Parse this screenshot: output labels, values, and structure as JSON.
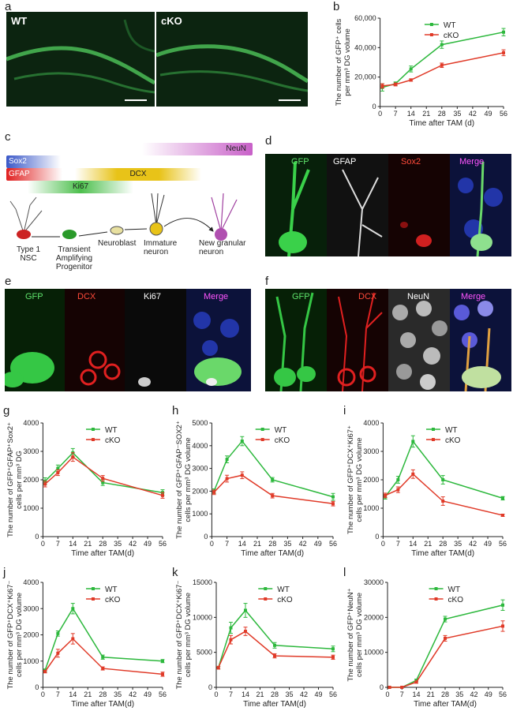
{
  "panel_letters": [
    "a",
    "b",
    "c",
    "d",
    "e",
    "f",
    "g",
    "h",
    "i",
    "j",
    "k",
    "l"
  ],
  "panel_a": {
    "labels": [
      "WT",
      "cKO"
    ]
  },
  "panel_c": {
    "markers": [
      "Sox2",
      "GFAP",
      "Ki67",
      "DCX",
      "NeuN"
    ],
    "stages": [
      "Type 1 NSC",
      "Transient Amplifying Progenitor",
      "Neuroblast",
      "Immature neuron",
      "New granular neuron"
    ]
  },
  "panel_d": {
    "labels": [
      "GFP",
      "GFAP",
      "Sox2",
      "Merge"
    ]
  },
  "panel_e": {
    "labels": [
      "GFP",
      "DCX",
      "Ki67",
      "Merge"
    ]
  },
  "panel_f": {
    "labels": [
      "GFP",
      "DCX",
      "NeuN",
      "Merge"
    ]
  },
  "colors": {
    "wt": "#2db83d",
    "cko": "#e03a28"
  },
  "chart_data": [
    {
      "id": "b",
      "type": "line",
      "ylabel": [
        "The number of GFP⁺ cells",
        "per mm³ DG volume"
      ],
      "xlabel": "Time after TAM (d)",
      "x": [
        0,
        7,
        14,
        21,
        28,
        35,
        42,
        49,
        56
      ],
      "xticks": [
        "0",
        "7",
        "14",
        "21",
        "28",
        "35",
        "42",
        "49",
        "56"
      ],
      "ylim": [
        0,
        60000
      ],
      "yticks": [
        "0",
        "20,000",
        "40,000",
        "60,000"
      ],
      "ytick_values": [
        0,
        20000,
        40000,
        60000
      ],
      "series": [
        {
          "name": "WT",
          "x": [
            1,
            7,
            14,
            28,
            56
          ],
          "values": [
            13000,
            15500,
            25500,
            42000,
            50500
          ],
          "err": [
            2500,
            1200,
            2000,
            2500,
            2500
          ]
        },
        {
          "name": "cKO",
          "x": [
            1,
            7,
            14,
            28,
            56
          ],
          "values": [
            14000,
            15000,
            18000,
            28000,
            36500
          ],
          "err": [
            1500,
            1000,
            800,
            1500,
            2000
          ]
        }
      ]
    },
    {
      "id": "g",
      "type": "line",
      "ylabel": [
        "The number of GFP⁺GFAP⁺Sox2⁺",
        "cells per mm³ DG"
      ],
      "xlabel": "Time after TAM(d)",
      "xticks": [
        "0",
        "7",
        "14",
        "21",
        "28",
        "35",
        "42",
        "49",
        "56"
      ],
      "ylim": [
        0,
        4000
      ],
      "yticks": [
        "0",
        "1000",
        "2000",
        "3000",
        "4000"
      ],
      "ytick_values": [
        0,
        1000,
        2000,
        3000,
        4000
      ],
      "series": [
        {
          "name": "WT",
          "x": [
            1,
            7,
            14,
            28,
            56
          ],
          "values": [
            1950,
            2400,
            2950,
            1900,
            1550
          ],
          "err": [
            120,
            120,
            150,
            100,
            100
          ]
        },
        {
          "name": "cKO",
          "x": [
            1,
            7,
            14,
            28,
            56
          ],
          "values": [
            1850,
            2250,
            2800,
            2050,
            1450
          ],
          "err": [
            100,
            100,
            150,
            100,
            100
          ]
        }
      ]
    },
    {
      "id": "h",
      "type": "line",
      "ylabel": [
        "The number of GFP⁺GFAP⁻SOX2⁺",
        "cells per mm³ DG volume"
      ],
      "xlabel": "Time after TAM(d)",
      "xticks": [
        "0",
        "7",
        "14",
        "21",
        "28",
        "35",
        "42",
        "49",
        "56"
      ],
      "ylim": [
        0,
        5000
      ],
      "yticks": [
        "0",
        "1000",
        "2000",
        "3000",
        "4000",
        "5000"
      ],
      "ytick_values": [
        0,
        1000,
        2000,
        3000,
        4000,
        5000
      ],
      "series": [
        {
          "name": "WT",
          "x": [
            1,
            7,
            14,
            28,
            56
          ],
          "values": [
            2000,
            3400,
            4200,
            2500,
            1750
          ],
          "err": [
            100,
            150,
            200,
            100,
            150
          ]
        },
        {
          "name": "cKO",
          "x": [
            1,
            7,
            14,
            28,
            56
          ],
          "values": [
            1950,
            2550,
            2700,
            1800,
            1450
          ],
          "err": [
            100,
            150,
            150,
            100,
            100
          ]
        }
      ]
    },
    {
      "id": "i",
      "type": "line",
      "ylabel": [
        "The number of GFP⁺DCX⁺Ki67⁺",
        "cells per mm³ DG volume"
      ],
      "xlabel": "Time after TAM(d)",
      "xticks": [
        "0",
        "7",
        "14",
        "21",
        "28",
        "35",
        "42",
        "49",
        "56"
      ],
      "ylim": [
        0,
        4000
      ],
      "yticks": [
        "0",
        "1000",
        "2000",
        "3000",
        "4000"
      ],
      "ytick_values": [
        0,
        1000,
        2000,
        3000,
        4000
      ],
      "series": [
        {
          "name": "WT",
          "x": [
            1,
            7,
            14,
            28,
            56
          ],
          "values": [
            1400,
            2000,
            3350,
            2000,
            1350
          ],
          "err": [
            80,
            120,
            200,
            150,
            60
          ]
        },
        {
          "name": "cKO",
          "x": [
            1,
            7,
            14,
            28,
            56
          ],
          "values": [
            1450,
            1650,
            2200,
            1250,
            750
          ],
          "err": [
            80,
            100,
            150,
            150,
            40
          ]
        }
      ]
    },
    {
      "id": "j",
      "type": "line",
      "ylabel": [
        "The number of GFP⁺DCX⁺Ki67⁻",
        "cells per mm³ DG volume"
      ],
      "xlabel": "Time after TAM(d)",
      "xticks": [
        "0",
        "7",
        "14",
        "21",
        "28",
        "35",
        "42",
        "49",
        "56"
      ],
      "ylim": [
        0,
        4000
      ],
      "yticks": [
        "0",
        "1000",
        "2000",
        "3000",
        "4000"
      ],
      "ytick_values": [
        0,
        1000,
        2000,
        3000,
        4000
      ],
      "series": [
        {
          "name": "WT",
          "x": [
            1,
            7,
            14,
            28,
            56
          ],
          "values": [
            650,
            2050,
            3000,
            1150,
            1000
          ],
          "err": [
            50,
            100,
            200,
            80,
            60
          ]
        },
        {
          "name": "cKO",
          "x": [
            1,
            7,
            14,
            28,
            56
          ],
          "values": [
            600,
            1300,
            1850,
            720,
            500
          ],
          "err": [
            50,
            150,
            200,
            60,
            80
          ]
        }
      ]
    },
    {
      "id": "k",
      "type": "line",
      "ylabel": [
        "The number of GFP⁺DCX⁺Ki67⁻",
        "cells per mm³ DG volume"
      ],
      "xlabel": "Time after TAM(d)",
      "xticks": [
        "0",
        "7",
        "14",
        "21",
        "28",
        "35",
        "42",
        "49",
        "56"
      ],
      "ylim": [
        0,
        15000
      ],
      "yticks": [
        "0",
        "5000",
        "10000",
        "15000"
      ],
      "ytick_values": [
        0,
        5000,
        10000,
        15000
      ],
      "series": [
        {
          "name": "WT",
          "x": [
            1,
            7,
            14,
            28,
            56
          ],
          "values": [
            2800,
            8500,
            11000,
            6000,
            5500
          ],
          "err": [
            200,
            800,
            1000,
            400,
            400
          ]
        },
        {
          "name": "cKO",
          "x": [
            1,
            7,
            14,
            28,
            56
          ],
          "values": [
            2800,
            6800,
            8000,
            4500,
            4300
          ],
          "err": [
            200,
            600,
            600,
            300,
            300
          ]
        }
      ]
    },
    {
      "id": "l",
      "type": "line",
      "ylabel": [
        "The number of GFP⁺NeuN⁺",
        "cells per mm³ DG volume"
      ],
      "xlabel": "Time after TAM(d)",
      "xticks": [
        "0",
        "7",
        "14",
        "21",
        "28",
        "35",
        "42",
        "49",
        "56"
      ],
      "ylim": [
        0,
        30000
      ],
      "yticks": [
        "0",
        "10000",
        "20000",
        "30000"
      ],
      "ytick_values": [
        0,
        10000,
        20000,
        30000
      ],
      "series": [
        {
          "name": "WT",
          "x": [
            1,
            7,
            14,
            28,
            56
          ],
          "values": [
            0,
            0,
            2000,
            19500,
            23500
          ],
          "err": [
            0,
            0,
            300,
            800,
            1500
          ]
        },
        {
          "name": "cKO",
          "x": [
            1,
            7,
            14,
            28,
            56
          ],
          "values": [
            0,
            0,
            1500,
            14000,
            17500
          ],
          "err": [
            0,
            0,
            300,
            800,
            1500
          ]
        }
      ]
    }
  ]
}
